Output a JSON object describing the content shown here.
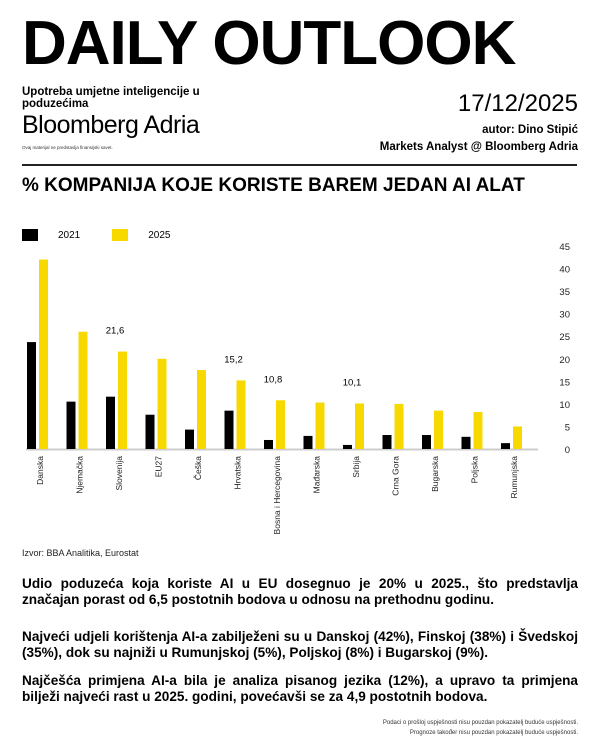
{
  "header": {
    "title": "DAILY OUTLOOK",
    "subtitle": "Upotreba umjetne inteligencije u poduzećima",
    "brand": "Bloomberg Adria",
    "disclaimer": "Ovaj materijal ne predstavlja finansijski savet.",
    "date": "17/12/2025",
    "author": "autor: Dino Stipić",
    "role": "Markets Analyst @ Bloomberg Adria"
  },
  "colors": {
    "2021": "#000000",
    "2025": "#F7D900"
  },
  "chart_data": {
    "type": "bar",
    "title": "% KOMPANIJA KOJE KORISTE BAREM JEDAN AI ALAT",
    "categories": [
      "Danska",
      "Njemačka",
      "Slovenija",
      "EU27",
      "Češka",
      "Hrvatska",
      "Bosna i Hercegovina",
      "Mađarska",
      "Srbija",
      "Crna Gora",
      "Bugarska",
      "Poljska",
      "Rumunjska"
    ],
    "series": [
      {
        "name": "2021",
        "values": [
          23.7,
          10.5,
          11.6,
          7.6,
          4.3,
          8.5,
          2.0,
          2.9,
          0.9,
          3.1,
          3.1,
          2.7,
          1.3
        ]
      },
      {
        "name": "2025",
        "values": [
          42,
          26,
          21.6,
          20,
          17.5,
          15.2,
          10.8,
          10.3,
          10.1,
          10,
          8.5,
          8.2,
          5
        ]
      }
    ],
    "data_labels": [
      {
        "category": "Slovenija",
        "text": "21,6"
      },
      {
        "category": "Hrvatska",
        "text": "15,2"
      },
      {
        "category": "Bosna i Hercegovina",
        "text": "10,8"
      },
      {
        "category": "Srbija",
        "text": "10,1"
      }
    ],
    "ylim": [
      0,
      45
    ],
    "yticks": [
      "0",
      "5",
      "10",
      "15",
      "20",
      "25",
      "30",
      "35",
      "40",
      "45"
    ],
    "y_axis_position": "right",
    "legend": "top-left",
    "grid": false,
    "source": "Izvor: BBA Analitika, Eurostat"
  },
  "text": {
    "p1": "Udio poduzeća koja koriste AI u EU dosegnuo je 20% u 2025., što predstavlja značajan porast od 6,5 postotnih bodova u odnosu na prethodnu godinu.",
    "p2": "Najveći udjeli korištenja AI-a zabilježeni su u Danskoj (42%), Finskoj (38%) i Švedskoj (35%), dok su najniži u Rumunjskoj (5%), Poljskoj (8%) i Bugarskoj (9%).",
    "p3": "Najčešća primjena AI-a bila je analiza pisanog jezika (12%), a upravo ta primjena bilježi najveći rast u 2025. godini, povećavši se za 4,9 postotnih bodova."
  },
  "footer": {
    "line1": "Podaci o prošloj uspješnosti nisu pouzdan pokazatelj buduće uspješnosti.",
    "line2": "Prognoze također nisu pouzdan pokazatelj buduće uspješnosti."
  }
}
